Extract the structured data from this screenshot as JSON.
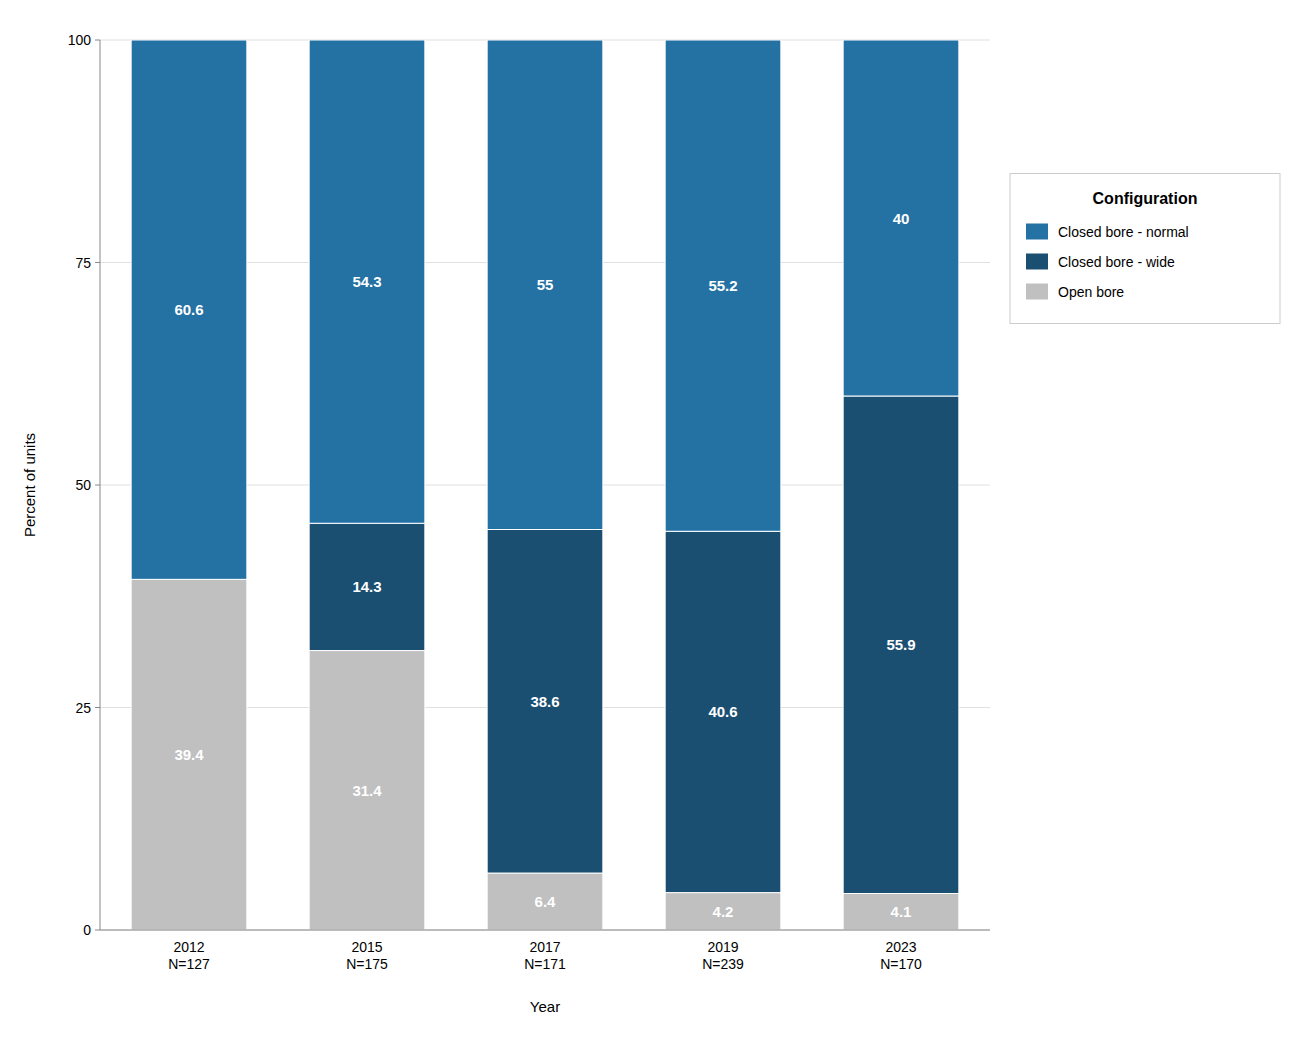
{
  "chart_data": {
    "type": "bar",
    "stacked": true,
    "categories": [
      "2012\nN=127",
      "2015\nN=175",
      "2017\nN=171",
      "2019\nN=239",
      "2023\nN=170"
    ],
    "series": [
      {
        "name": "Open bore",
        "color": "#c0c0c0",
        "values": [
          39.4,
          31.4,
          6.4,
          4.2,
          4.1
        ]
      },
      {
        "name": "Closed bore - wide",
        "color": "#1b4f72",
        "values": [
          0.0,
          14.3,
          38.6,
          40.6,
          55.9
        ],
        "value_labels": [
          null,
          "14.3",
          "38.6",
          "40.6",
          "55.9"
        ]
      },
      {
        "name": "Closed bore - normal",
        "color": "#2471a3",
        "values": [
          60.6,
          54.3,
          55,
          55.2,
          40
        ]
      }
    ],
    "x_label": "Year",
    "y_label": "Percent of units",
    "legend_title": "Configuration",
    "ylim": [
      0,
      100
    ],
    "yticks": [
      0,
      25,
      50,
      75,
      100
    ],
    "grid": true,
    "legend": "right",
    "data_labels": true
  }
}
